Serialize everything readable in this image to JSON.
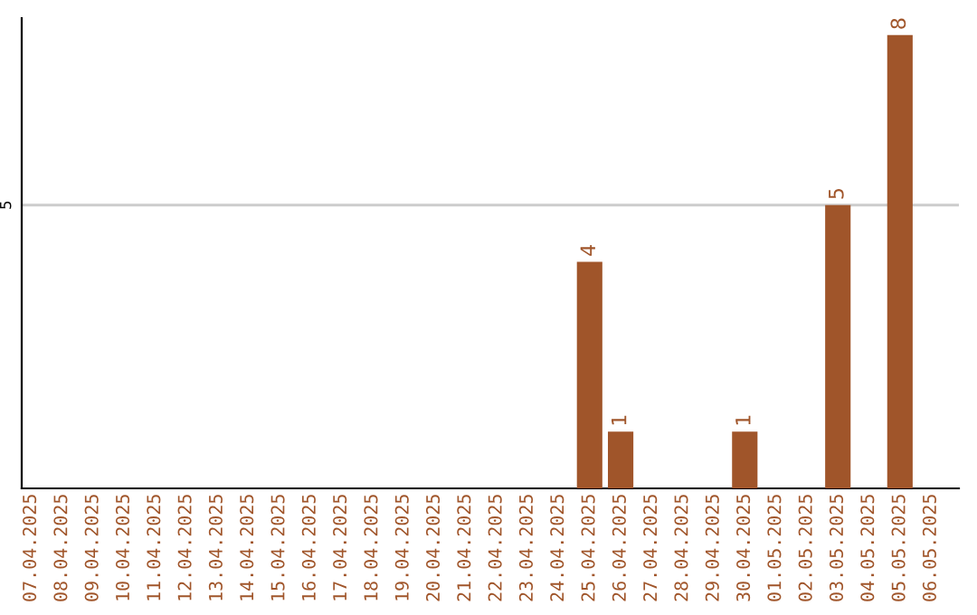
{
  "chart_data": {
    "type": "bar",
    "categories": [
      "07.04.2025",
      "08.04.2025",
      "09.04.2025",
      "10.04.2025",
      "11.04.2025",
      "12.04.2025",
      "13.04.2025",
      "14.04.2025",
      "15.04.2025",
      "16.04.2025",
      "17.04.2025",
      "18.04.2025",
      "19.04.2025",
      "20.04.2025",
      "21.04.2025",
      "22.04.2025",
      "23.04.2025",
      "24.04.2025",
      "25.04.2025",
      "26.04.2025",
      "27.04.2025",
      "28.04.2025",
      "29.04.2025",
      "30.04.2025",
      "01.05.2025",
      "02.05.2025",
      "03.05.2025",
      "04.05.2025",
      "05.05.2025",
      "06.05.2025"
    ],
    "values": [
      null,
      null,
      null,
      null,
      null,
      null,
      null,
      null,
      null,
      null,
      null,
      null,
      null,
      null,
      null,
      null,
      null,
      null,
      4,
      1,
      null,
      null,
      null,
      1,
      null,
      null,
      5,
      null,
      8,
      null
    ],
    "data_labels": true,
    "ylim": [
      0,
      8.3
    ],
    "color": "#a0552a",
    "ref_lines": [
      {
        "axis": "y",
        "value": 5,
        "label": "5",
        "color": "#cccccc"
      }
    ]
  }
}
